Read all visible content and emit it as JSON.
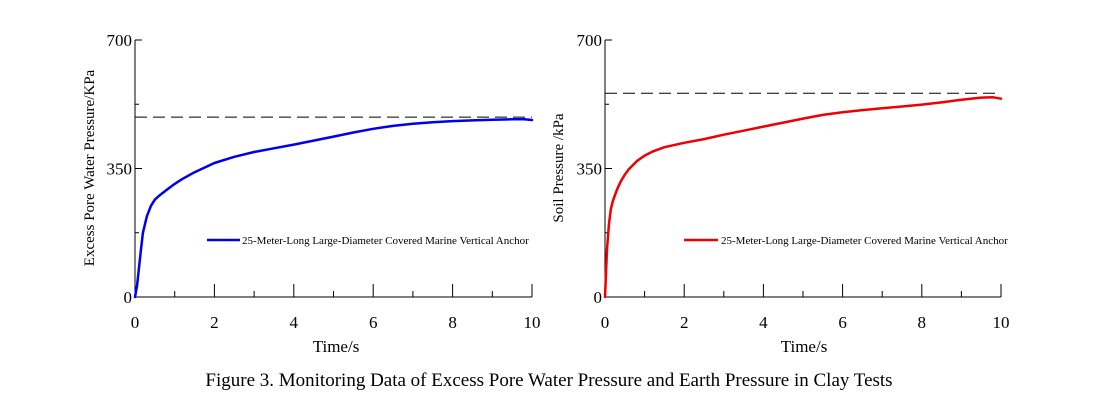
{
  "figure": {
    "caption": "Figure 3. Monitoring Data of Excess Pore Water Pressure and Earth Pressure in Clay Tests"
  },
  "chart_data": [
    {
      "type": "line",
      "id": "left",
      "title": "",
      "xlabel": "Time/s",
      "ylabel": "Excess Pore Water Pressure/KPa",
      "xlim": [
        0,
        10
      ],
      "ylim": [
        0,
        700
      ],
      "xticks": [
        0,
        2,
        4,
        6,
        8,
        10
      ],
      "yticks": [
        0,
        350,
        700
      ],
      "xtick_labels": [
        "0",
        "2",
        "4",
        "6",
        "8",
        "10"
      ],
      "ytick_labels": [
        "0",
        "350",
        "700"
      ],
      "reference_line": 490,
      "legend_position": "center-right",
      "series": [
        {
          "name": "25-Meter-Long Large-Diameter Covered Marine Vertical Anchor",
          "color": "#0000ee",
          "x": [
            0,
            0.05,
            0.1,
            0.15,
            0.2,
            0.3,
            0.4,
            0.5,
            0.6,
            0.8,
            1.0,
            1.2,
            1.5,
            2.0,
            2.5,
            3.0,
            3.5,
            4.0,
            4.5,
            5.0,
            5.5,
            6.0,
            6.5,
            7.0,
            7.5,
            8.0,
            8.5,
            9.0,
            9.5,
            9.8,
            10.0
          ],
          "y": [
            0,
            30,
            80,
            130,
            175,
            220,
            248,
            265,
            275,
            292,
            308,
            322,
            340,
            365,
            382,
            395,
            405,
            415,
            426,
            437,
            448,
            458,
            466,
            472,
            476,
            479,
            481,
            483,
            484,
            484,
            482
          ]
        }
      ]
    },
    {
      "type": "line",
      "id": "right",
      "title": "",
      "xlabel": "Time/s",
      "ylabel": "Soil Pressure /kPa",
      "xlim": [
        0,
        10
      ],
      "ylim": [
        0,
        700
      ],
      "xticks": [
        0,
        2,
        4,
        6,
        8,
        10
      ],
      "yticks": [
        0,
        350,
        700
      ],
      "xtick_labels": [
        "0",
        "2",
        "4",
        "6",
        "8",
        "10"
      ],
      "ytick_labels": [
        "0",
        "350",
        "700"
      ],
      "reference_line": 555,
      "legend_position": "center-right",
      "series": [
        {
          "name": "25-Meter-Long Large-Diameter Covered Marine Vertical Anchor",
          "color": "#ee0000",
          "x": [
            0,
            0.05,
            0.1,
            0.15,
            0.2,
            0.3,
            0.4,
            0.5,
            0.6,
            0.8,
            1.0,
            1.2,
            1.5,
            2.0,
            2.5,
            3.0,
            3.5,
            4.0,
            4.5,
            5.0,
            5.5,
            6.0,
            6.5,
            7.0,
            7.5,
            8.0,
            8.5,
            9.0,
            9.5,
            9.8,
            10.0
          ],
          "y": [
            0,
            130,
            200,
            240,
            262,
            292,
            315,
            333,
            348,
            370,
            385,
            396,
            408,
            420,
            430,
            442,
            453,
            464,
            475,
            486,
            496,
            503,
            509,
            514,
            519,
            524,
            530,
            537,
            543,
            544,
            540
          ]
        }
      ]
    }
  ]
}
